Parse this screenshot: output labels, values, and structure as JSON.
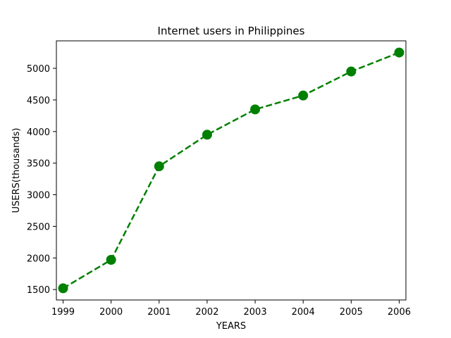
{
  "chart_data": {
    "type": "line",
    "title": "Internet users in Philippines",
    "xlabel": "YEARS",
    "ylabel": "USERS(thousands)",
    "x": [
      1999,
      2000,
      2001,
      2002,
      2003,
      2004,
      2005,
      2006
    ],
    "xticks": [
      "1999",
      "2000",
      "2001",
      "2002",
      "2003",
      "2004",
      "2005",
      "2006"
    ],
    "yticks": [
      1500,
      2000,
      2500,
      3000,
      3500,
      4000,
      4500,
      5000
    ],
    "xlim": [
      1998.86,
      2006.14
    ],
    "ylim": [
      1335,
      5435
    ],
    "grid": false,
    "series": [
      {
        "values": [
          1520,
          1970,
          3450,
          3950,
          4350,
          4570,
          4950,
          5250
        ],
        "color": "#008000",
        "line_style": "dashed",
        "marker": "circle"
      }
    ]
  }
}
